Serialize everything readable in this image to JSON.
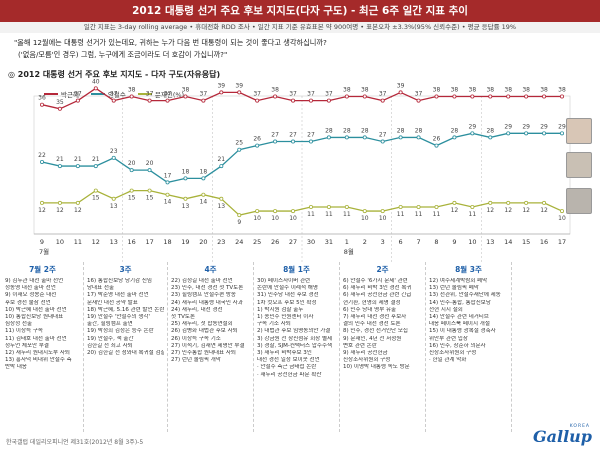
{
  "header": {
    "title": "2012 대통령 선거 주요 후보 지지도(다자 구도) - 최근 6주 일간 지표 추이",
    "subtitle": "일간 지표는 3-day rolling average • 휴대전화 RDD 조사 • 일간 지표 기준 유효표본 약 900여명 • 표본오차 ±3.3%(95% 신뢰수준) • 평균 응답률 19%"
  },
  "question": {
    "line1": "\"올해 12월에는 대통령 선거가 있는데요, 귀하는 누가 다음 번 대통령이 되는 것이 좋다고 생각하십니까?",
    "line2": "('없음/모름'인 경우) 그럼, 누구에게 조금이라도 더 호감이 가십니까?\""
  },
  "chart_title": "◎ 2012 대통령 선거 주요 후보 지지도 - 다자 구도(자유응답)",
  "chart_data": {
    "type": "line",
    "title": "2012 대통령 선거 주요 후보 지지도 - 다자 구도(자유응답)",
    "x": [
      "9",
      "10",
      "11",
      "12",
      "13",
      "16",
      "17",
      "18",
      "19",
      "20",
      "23",
      "24",
      "25",
      "26",
      "27",
      "30",
      "31",
      "1",
      "2",
      "3",
      "6",
      "7",
      "8",
      "9",
      "10",
      "13",
      "14",
      "15",
      "16",
      "17"
    ],
    "month_labels": [
      {
        "label": "7월",
        "start": 0
      },
      {
        "label": "8월",
        "start": 17
      }
    ],
    "series": [
      {
        "name": "박근혜",
        "color": "#b5283a",
        "values": [
          36,
          35,
          37,
          40,
          37,
          38,
          37,
          37,
          38,
          37,
          39,
          39,
          37,
          38,
          37,
          37,
          37,
          38,
          38,
          37,
          39,
          37,
          38,
          38,
          38,
          38,
          38,
          38,
          38,
          38
        ]
      },
      {
        "name": "안철수",
        "color": "#2c8f9e",
        "values": [
          22,
          21,
          21,
          21,
          23,
          20,
          20,
          17,
          18,
          18,
          21,
          25,
          26,
          27,
          27,
          27,
          28,
          28,
          28,
          27,
          28,
          28,
          26,
          28,
          29,
          28,
          29,
          29,
          29,
          29
        ]
      },
      {
        "name": "문재인(%)",
        "color": "#a8b23a",
        "values": [
          12,
          12,
          12,
          15,
          13,
          15,
          15,
          14,
          13,
          14,
          13,
          9,
          10,
          10,
          10,
          11,
          11,
          11,
          10,
          10,
          11,
          11,
          11,
          12,
          11,
          12,
          12,
          12,
          12,
          10
        ]
      }
    ],
    "ylim": [
      0,
      50
    ],
    "week_labels": [
      "7월 2주",
      "3주",
      "4주",
      "8월 1주",
      "2주",
      "8월 3주"
    ]
  },
  "weeks": [
    {
      "title": "7월 2주",
      "notes": [
        "9) 김두관 대선 출마 선언",
        "   정동영 대선 출마 선언",
        "9) 이재오 정몽준 대선",
        "   후보 경선 불참 선언",
        "10) 박근혜 대선 출마 선언",
        "10) 통합진보당 원내대표",
        "   심상정 선출",
        "11) 이상득 구속",
        "11) 김태호 대선 출마 선언",
        "   정두언 체포안 부결",
        "12) 새누리 원내지도부 사퇴",
        "13) 홍사덕 비대위 안철수 측",
        "   반박 대응"
      ]
    },
    {
      "title": "3주",
      "notes": [
        "16) 통합진보당 당기감 신임",
        "   당대표 선출",
        "17) 박준영 대선 출마 선언",
        "   문재인 대선 공약 발표",
        "18) 박근혜, 5.16 관련 발언 논란",
        "19) 안철수 '안철수의 생각'",
        "   출간, 힐링캠프 출연",
        "19) 박정희 김정은 등수 논란",
        "19) 안철수, 책 출간",
        "   김한길 전 최고 사퇴",
        "20) 김한길 전 청와대 복귀설 검찰 출석"
      ]
    },
    {
      "title": "4주",
      "notes": [
        "22) 김정길 대선 출마 선언",
        "23) 민주, 대선 경선 첫 TV토론",
        "23) 힐링캠프 안철수편 방송",
        "24) 새누리 대통령 대국민 사과",
        "24) 새누리, 대선 경선",
        "   첫 TV토론",
        "25) 새누리, 첫 합동연설회",
        "26) 김병화 대법관 후보 사퇴",
        "26) 이상득 구속 기소",
        "27) 이석기, 김재연 제명안 부결",
        "27) 민주통합 원내대표 사퇴",
        "27) 런던 올림픽 개막"
      ]
    },
    {
      "title": "8월 1주",
      "notes": [
        "30) 페이스사이버 관련",
        "   논란에 안철수 이례적 해명",
        "31) 민주당 대선 후보 경선",
        "   1차 컷오프 후보 5인 확정",
        "1) 박지원 검찰 출두",
        "1) 송민수 민원센터 이사",
        "   구속 기소 사퇴",
        "2) 대법관 후보 임명동의안 가결",
        "3) 강금원 전 창신섬유 회장 별세",
        "3) 경찰, SJM-컨택터스 압수수색",
        "3) 새누리 비박후보 3인",
        "   대선 경선 일정 보이콧 선언",
        "   · 안철수 측근 금태섭 논란",
        "   · 새누리 공천헌금 파문 확산"
      ]
    },
    {
      "title": "2주",
      "notes": [
        "6) 안철수 '6가지 문제' 관련",
        "6) 새누리 비박 3인 경선 복귀",
        "6) 새누리 공천헌금 관련 긴급",
        "   현기환, 현영희 제명 결정",
        "6) 민주 당대 명부 유출",
        "7) 새누리 대선 경선 후보자",
        "   결의 민주 대선 경선 토론",
        "8) 민주, 경선 선거인단 모집",
        "9) 문재인, 4년 전 서청원",
        "   변호 관련 논란",
        "9) 새누리 공천헌금",
        "   진상조사위원회 구성",
        "10) 이명박 대통령 독도 방문"
      ]
    },
    {
      "title": "8월 3주",
      "notes": [
        "12) 여수세계박람회 폐막",
        "13) 런던 올림픽 폐막",
        "13) 선관위, 안철수재단에 제동",
        "14) 민주-통합, 통합진보당",
        "   전현 지지 철회",
        "14) 안철수 관련 네거티브",
        "   대응 페이스북 페이지 개설",
        "15) 이 대통령 광복절 경축사",
        "   위안부 관련 입장",
        "16) 민주, 장준하 의문사",
        "   진상조사위원회 구성",
        "   · 한일 관계 악화"
      ]
    },
    {
      "title": "",
      "notes": []
    }
  ],
  "footer": "한국갤럽 데일리오피니언 제31호(2012년 8월 3주)-5",
  "logo": {
    "name": "Gallup",
    "sub": "KOREA"
  }
}
